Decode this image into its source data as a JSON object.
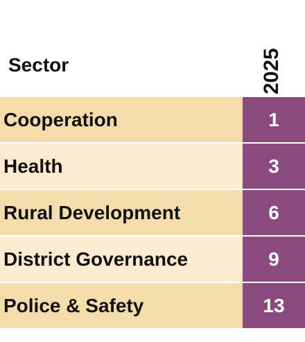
{
  "chart_data": {
    "type": "table",
    "columns": [
      "Sector",
      "2025"
    ],
    "rows": [
      {
        "sector": "Cooperation",
        "value": 1
      },
      {
        "sector": "Health",
        "value": 3
      },
      {
        "sector": "Rural Development",
        "value": 6
      },
      {
        "sector": "District Governance",
        "value": 9
      },
      {
        "sector": "Police & Safety",
        "value": 13
      }
    ]
  },
  "colors": {
    "row_dark": "#f5dcab",
    "row_light": "#fbebd0",
    "value_cell": "#8b4a7e",
    "value_text": "#ffffff",
    "label_text": "#111111"
  }
}
